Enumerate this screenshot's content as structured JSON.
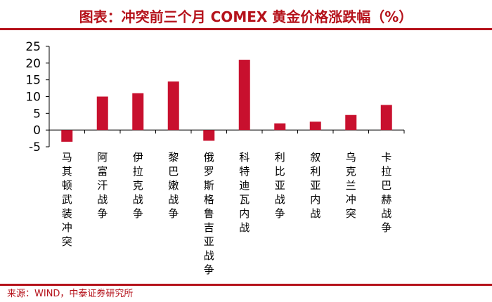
{
  "header": {
    "title": "图表：冲突前三个月 COMEX 黄金价格涨跌幅（%）"
  },
  "footer": {
    "source": "来源：WIND，中泰证券研究所"
  },
  "colors": {
    "accent": "#b5121b",
    "bar": "#c8102e",
    "axis": "#000000"
  },
  "chart_data": {
    "type": "bar",
    "title": "冲突前三个月 COMEX 黄金价格涨跌幅（%）",
    "xlabel": "",
    "ylabel": "",
    "ylim": [
      -5,
      25
    ],
    "yticks": [
      25,
      20,
      15,
      10,
      5,
      0,
      -5
    ],
    "grid": false,
    "categories": [
      "马其顿武装冲突",
      "阿富汗战争",
      "伊拉克战争",
      "黎巴嫩战争",
      "俄罗斯格鲁吉亚战争",
      "科特迪瓦内战",
      "利比亚战争",
      "叙利亚内战",
      "乌克兰冲突",
      "卡拉巴赫战争"
    ],
    "values": [
      -3.5,
      10,
      11,
      14.5,
      -3.2,
      21,
      2,
      2.5,
      4.5,
      7.5
    ]
  }
}
